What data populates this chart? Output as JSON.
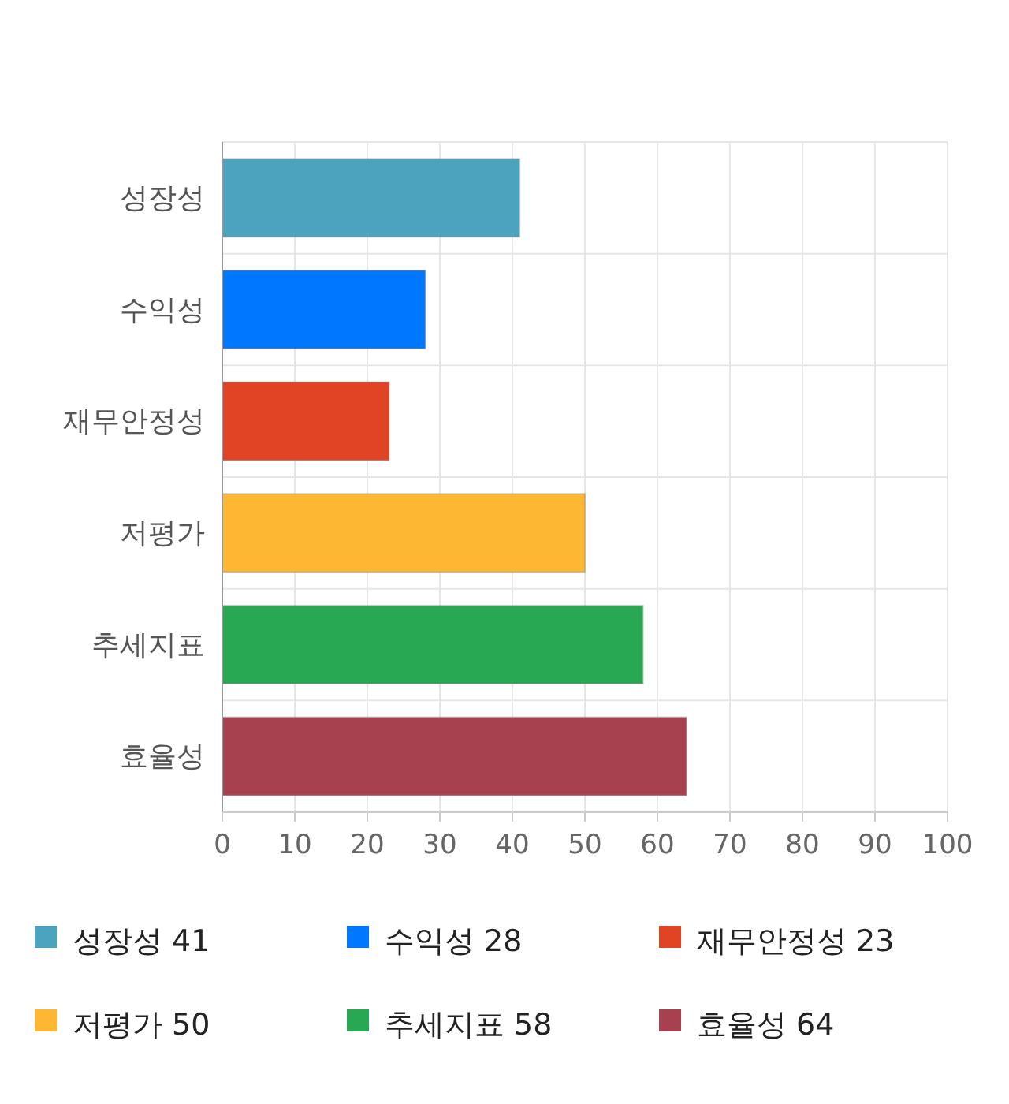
{
  "chart_data": {
    "type": "bar",
    "orientation": "horizontal",
    "stacked": true,
    "categories": [
      "성장성",
      "수익성",
      "재무안정성",
      "저평가",
      "추세지표",
      "효율성"
    ],
    "series": [
      {
        "name": "성장성 41",
        "color": "#4ba3bd",
        "values": [
          41,
          null,
          null,
          null,
          null,
          null
        ]
      },
      {
        "name": "수익성 28",
        "color": "#0077ff",
        "values": [
          null,
          28,
          null,
          null,
          null,
          null
        ]
      },
      {
        "name": "재무안정성 23",
        "color": "#e04424",
        "values": [
          null,
          null,
          23,
          null,
          null,
          null
        ]
      },
      {
        "name": "저평가 50",
        "color": "#fdb732",
        "values": [
          null,
          null,
          null,
          50,
          null,
          null
        ]
      },
      {
        "name": "추세지표 58",
        "color": "#29a853",
        "values": [
          null,
          null,
          null,
          null,
          58,
          null
        ]
      },
      {
        "name": "효율성 64",
        "color": "#a8414f",
        "values": [
          null,
          null,
          null,
          null,
          null,
          64
        ]
      }
    ],
    "xlim": [
      0,
      100
    ],
    "xticks": [
      0,
      10,
      20,
      30,
      40,
      50,
      60,
      70,
      80,
      90,
      100
    ],
    "grid": true,
    "legend": "bottom"
  }
}
